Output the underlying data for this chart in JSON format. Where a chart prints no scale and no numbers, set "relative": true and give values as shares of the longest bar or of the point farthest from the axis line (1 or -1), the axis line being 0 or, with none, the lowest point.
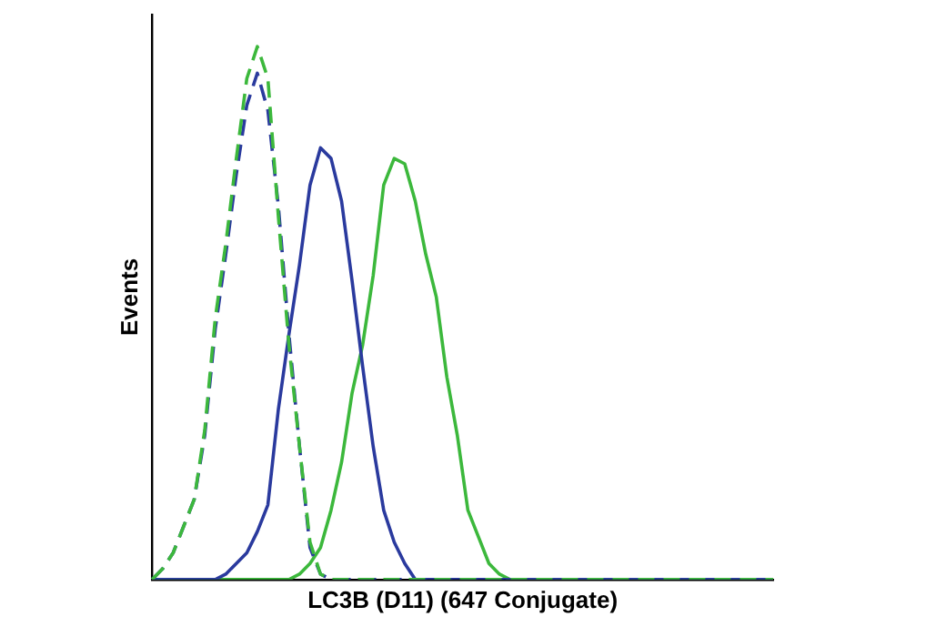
{
  "chart_data": {
    "type": "line",
    "relative": true,
    "xlabel": "LC3B (D11) (647 Conjugate)",
    "ylabel": "Events",
    "tick_labels": false,
    "grid": false,
    "legend": false,
    "marker": "none",
    "categories": [
      null,
      null,
      null,
      null,
      null,
      null,
      null,
      null,
      null,
      null,
      null,
      null,
      null,
      null,
      null,
      null,
      null,
      null,
      null,
      null,
      null,
      null,
      null,
      null,
      null,
      null,
      null,
      null,
      null,
      null,
      null,
      null,
      null,
      null,
      null,
      null,
      null,
      null,
      null,
      null,
      null,
      null,
      null,
      null,
      null,
      null,
      null,
      null,
      null,
      null,
      null,
      null,
      null,
      null,
      null,
      null,
      null,
      null,
      null,
      null
    ],
    "series": [
      {
        "color": "#3cb83c",
        "line_style": "dashed",
        "values": [
          0,
          0.02,
          0.05,
          0.1,
          0.15,
          0.28,
          0.49,
          0.63,
          0.79,
          0.94,
          1,
          0.94,
          0.68,
          0.44,
          0.25,
          0.07,
          0.01,
          0,
          0,
          0,
          0,
          0,
          0,
          0,
          0,
          0,
          0,
          0,
          0,
          0,
          0,
          0,
          0,
          0,
          0,
          0,
          0,
          0,
          0,
          0,
          0,
          0,
          0,
          0,
          0,
          0,
          0,
          0,
          0,
          0,
          0,
          0,
          0,
          0,
          0,
          0,
          0,
          0,
          0,
          0
        ]
      },
      {
        "color": "#2a3a9e",
        "line_style": "dashed",
        "values": [
          0,
          0.02,
          0.05,
          0.1,
          0.15,
          0.27,
          0.47,
          0.61,
          0.76,
          0.89,
          0.95,
          0.88,
          0.7,
          0.46,
          0.25,
          0.06,
          0.01,
          0,
          0,
          0,
          0,
          0,
          0,
          0,
          0,
          0,
          0,
          0,
          0,
          0,
          0,
          0,
          0,
          0,
          0,
          0,
          0,
          0,
          0,
          0,
          0,
          0,
          0,
          0,
          0,
          0,
          0,
          0,
          0,
          0,
          0,
          0,
          0,
          0,
          0,
          0,
          0,
          0,
          0,
          0
        ]
      },
      {
        "color": "#2a3a9e",
        "line_style": "solid",
        "values": [
          0,
          0,
          0,
          0,
          0,
          0,
          0,
          0.01,
          0.03,
          0.05,
          0.09,
          0.14,
          0.32,
          0.46,
          0.59,
          0.74,
          0.81,
          0.79,
          0.71,
          0.56,
          0.4,
          0.25,
          0.13,
          0.07,
          0.03,
          0,
          0,
          0,
          0,
          0,
          0,
          0,
          0,
          0,
          0,
          0,
          0,
          0,
          0,
          0,
          0,
          0,
          0,
          0,
          0,
          0,
          0,
          0,
          0,
          0,
          0,
          0,
          0,
          0,
          0,
          0,
          0,
          0,
          0,
          0
        ]
      },
      {
        "color": "#3cb83c",
        "line_style": "solid",
        "values": [
          0,
          0,
          0,
          0,
          0,
          0,
          0,
          0,
          0,
          0,
          0,
          0,
          0,
          0,
          0.01,
          0.03,
          0.06,
          0.13,
          0.22,
          0.35,
          0.44,
          0.57,
          0.74,
          0.79,
          0.78,
          0.71,
          0.61,
          0.53,
          0.38,
          0.27,
          0.13,
          0.08,
          0.03,
          0.01,
          0,
          0,
          0,
          0,
          0,
          0,
          0,
          0,
          0,
          0,
          0,
          0,
          0,
          0,
          0,
          0,
          0,
          0,
          0,
          0,
          0,
          0,
          0,
          0,
          0,
          0
        ]
      }
    ]
  }
}
